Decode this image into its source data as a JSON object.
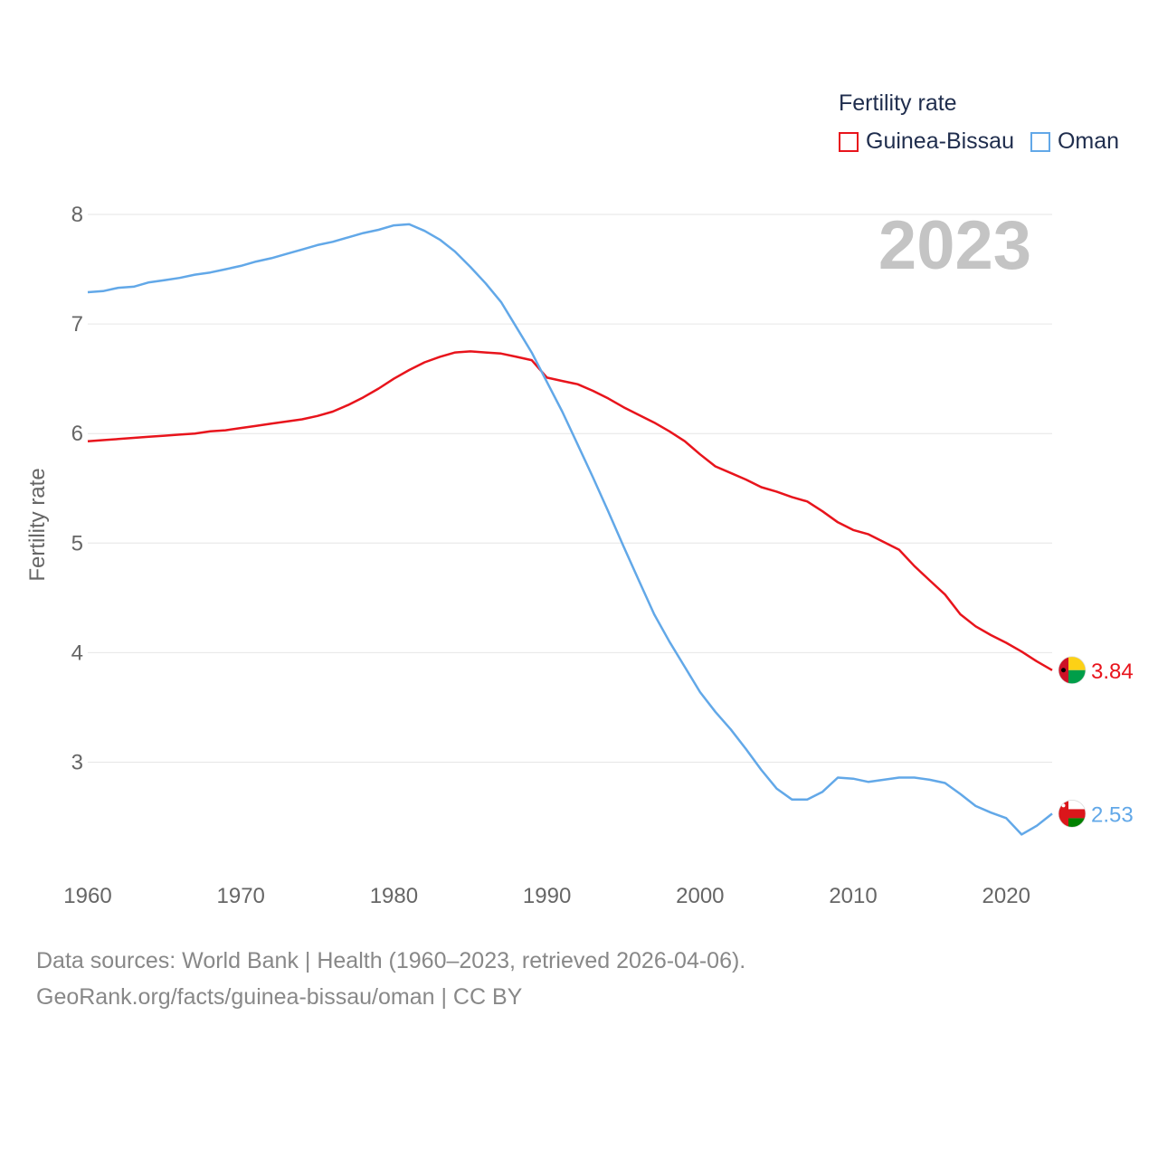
{
  "chart_data": {
    "type": "line",
    "legend_title": "Fertility rate",
    "ylabel": "Fertility rate",
    "year_label": "2023",
    "xlim": [
      1960,
      2023
    ],
    "ylim": [
      2.2,
      8.2
    ],
    "x_ticks": [
      1960,
      1970,
      1980,
      1990,
      2000,
      2010,
      2020
    ],
    "y_ticks": [
      3,
      4,
      5,
      6,
      7,
      8
    ],
    "x": [
      1960,
      1961,
      1962,
      1963,
      1964,
      1965,
      1966,
      1967,
      1968,
      1969,
      1970,
      1971,
      1972,
      1973,
      1974,
      1975,
      1976,
      1977,
      1978,
      1979,
      1980,
      1981,
      1982,
      1983,
      1984,
      1985,
      1986,
      1987,
      1988,
      1989,
      1990,
      1991,
      1992,
      1993,
      1994,
      1995,
      1996,
      1997,
      1998,
      1999,
      2000,
      2001,
      2002,
      2003,
      2004,
      2005,
      2006,
      2007,
      2008,
      2009,
      2010,
      2011,
      2012,
      2013,
      2014,
      2015,
      2016,
      2017,
      2018,
      2019,
      2020,
      2021,
      2022,
      2023
    ],
    "series": [
      {
        "name": "Guinea-Bissau",
        "color": "#e8141c",
        "end_label": "3.84",
        "flag": "guinea-bissau-flag",
        "values": [
          5.93,
          5.94,
          5.95,
          5.96,
          5.97,
          5.98,
          5.99,
          6.0,
          6.02,
          6.03,
          6.05,
          6.07,
          6.09,
          6.11,
          6.13,
          6.16,
          6.2,
          6.26,
          6.33,
          6.41,
          6.5,
          6.58,
          6.65,
          6.7,
          6.74,
          6.75,
          6.74,
          6.73,
          6.7,
          6.67,
          6.51,
          6.48,
          6.45,
          6.39,
          6.32,
          6.24,
          6.17,
          6.1,
          6.02,
          5.93,
          5.81,
          5.7,
          5.64,
          5.58,
          5.51,
          5.47,
          5.42,
          5.38,
          5.29,
          5.19,
          5.12,
          5.08,
          5.01,
          4.94,
          4.79,
          4.66,
          4.53,
          4.35,
          4.24,
          4.16,
          4.09,
          4.01,
          3.92,
          3.84
        ]
      },
      {
        "name": "Oman",
        "color": "#62a8e8",
        "end_label": "2.53",
        "flag": "oman-flag",
        "values": [
          7.29,
          7.3,
          7.33,
          7.34,
          7.38,
          7.4,
          7.42,
          7.45,
          7.47,
          7.5,
          7.53,
          7.57,
          7.6,
          7.64,
          7.68,
          7.72,
          7.75,
          7.79,
          7.83,
          7.86,
          7.9,
          7.91,
          7.85,
          7.77,
          7.66,
          7.52,
          7.37,
          7.2,
          6.97,
          6.74,
          6.47,
          6.2,
          5.9,
          5.6,
          5.29,
          4.97,
          4.66,
          4.35,
          4.1,
          3.87,
          3.64,
          3.46,
          3.3,
          3.12,
          2.93,
          2.76,
          2.66,
          2.66,
          2.73,
          2.86,
          2.85,
          2.82,
          2.84,
          2.86,
          2.86,
          2.84,
          2.81,
          2.71,
          2.6,
          2.54,
          2.49,
          2.34,
          2.42,
          2.53
        ]
      }
    ]
  },
  "footer": {
    "line1": "Data sources: World Bank | Health (1960–2023, retrieved 2026-04-06).",
    "line2": "GeoRank.org/facts/guinea-bissau/oman | CC BY"
  }
}
